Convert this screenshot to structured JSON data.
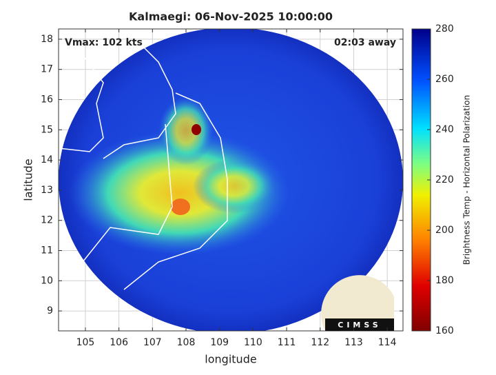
{
  "chart_data": {
    "type": "map",
    "title": "Kalmaegi: 06-Nov-2025 10:00:00",
    "annotations": [
      "Vmax: 102 kts",
      "02:03 away"
    ],
    "xlabel": "longitude",
    "ylabel": "latitude",
    "xlim": [
      104.2,
      114.47
    ],
    "xticks": [
      105,
      106,
      107,
      108,
      109,
      110,
      111,
      112,
      113,
      114
    ],
    "ylim": [
      8.34,
      18.34
    ],
    "yticks": [
      9,
      10,
      11,
      12,
      13,
      14,
      15,
      16,
      17,
      18
    ],
    "grid": true,
    "colorbar": {
      "label": "Brightness Temp - Horizontal Polarization",
      "lim": [
        160,
        280
      ],
      "ticks": [
        160,
        180,
        200,
        220,
        240,
        260,
        280
      ]
    },
    "logo": "CIMSS"
  }
}
